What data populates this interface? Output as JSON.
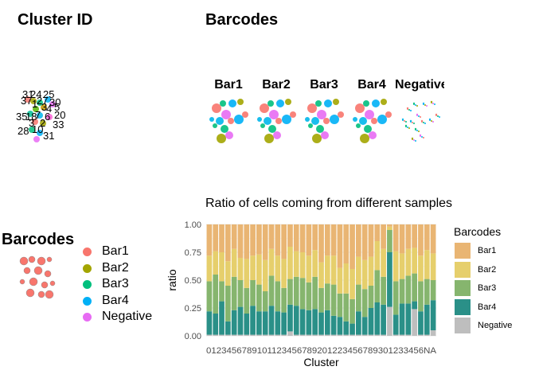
{
  "panels": {
    "cluster_title": "Cluster ID",
    "barcodes_title": "Barcodes",
    "barcodes_small_title": "Barcodes",
    "facet_labels": [
      "Bar1",
      "Bar2",
      "Bar3",
      "Bar4",
      "Negative"
    ],
    "cluster_numbers": [
      "31",
      "24",
      "25",
      "37",
      "27",
      "30",
      "5",
      "1",
      "3",
      "4",
      "35",
      "18",
      "7",
      "6",
      "20",
      "3",
      "2",
      "33",
      "28",
      "10",
      "31"
    ],
    "small_legend": {
      "items": [
        {
          "label": "Bar1",
          "color": "#F8766D"
        },
        {
          "label": "Bar2",
          "color": "#A3A500"
        },
        {
          "label": "Bar3",
          "color": "#00BF7D"
        },
        {
          "label": "Bar4",
          "color": "#00B0F6"
        },
        {
          "label": "Negative",
          "color": "#E76BF3"
        }
      ]
    }
  },
  "chart_data": {
    "type": "bar",
    "stacked": true,
    "title": "Ratio of cells coming from different samples",
    "xlabel": "Cluster",
    "ylabel": "ratio",
    "ylim": [
      0,
      1
    ],
    "yticks": [
      "0.00",
      "0.25",
      "0.50",
      "0.75",
      "1.00"
    ],
    "x_tick_text": "0123456789101123456789201223456789301233456NA",
    "legend_title": "Barcodes",
    "legend_position": "right",
    "categories": [
      "0",
      "1",
      "2",
      "3",
      "4",
      "5",
      "6",
      "7",
      "8",
      "9",
      "10",
      "11",
      "12",
      "13",
      "14",
      "15",
      "16",
      "17",
      "18",
      "19",
      "20",
      "21",
      "22",
      "23",
      "24",
      "25",
      "26",
      "27",
      "28",
      "29",
      "30",
      "31",
      "32",
      "33",
      "34",
      "35",
      "NA"
    ],
    "series": [
      {
        "name": "Negative",
        "color": "#BEBEBE",
        "values": [
          0.01,
          0.01,
          0.01,
          0.01,
          0.01,
          0.01,
          0.01,
          0.01,
          0.01,
          0.01,
          0.01,
          0.01,
          0.01,
          0.04,
          0.01,
          0.01,
          0.01,
          0.01,
          0.01,
          0.01,
          0.01,
          0.01,
          0.01,
          0.01,
          0.01,
          0.01,
          0.01,
          0.01,
          0.01,
          0.26,
          0.01,
          0.01,
          0.01,
          0.24,
          0.01,
          0.01,
          0.05
        ]
      },
      {
        "name": "Bar4",
        "color": "#2A9088",
        "values": [
          0.21,
          0.19,
          0.3,
          0.12,
          0.22,
          0.25,
          0.19,
          0.26,
          0.21,
          0.21,
          0.26,
          0.21,
          0.2,
          0.24,
          0.26,
          0.23,
          0.22,
          0.23,
          0.2,
          0.22,
          0.17,
          0.16,
          0.12,
          0.1,
          0.21,
          0.16,
          0.24,
          0.29,
          0.27,
          0.49,
          0.18,
          0.28,
          0.28,
          0.07,
          0.21,
          0.27,
          0.27
        ]
      },
      {
        "name": "Bar3",
        "color": "#86B56E",
        "values": [
          0.27,
          0.35,
          0.18,
          0.32,
          0.3,
          0.24,
          0.23,
          0.23,
          0.24,
          0.18,
          0.27,
          0.27,
          0.22,
          0.23,
          0.26,
          0.28,
          0.25,
          0.29,
          0.22,
          0.24,
          0.28,
          0.21,
          0.25,
          0.22,
          0.24,
          0.25,
          0.2,
          0.29,
          0.25,
          0.2,
          0.3,
          0.22,
          0.25,
          0.25,
          0.27,
          0.23,
          0.18
        ]
      },
      {
        "name": "Bar2",
        "color": "#E6CF6C",
        "values": [
          0.23,
          0.21,
          0.26,
          0.22,
          0.25,
          0.2,
          0.26,
          0.22,
          0.27,
          0.28,
          0.24,
          0.23,
          0.26,
          0.29,
          0.23,
          0.23,
          0.24,
          0.24,
          0.23,
          0.25,
          0.26,
          0.23,
          0.27,
          0.27,
          0.25,
          0.26,
          0.26,
          0.26,
          0.25,
          0.03,
          0.27,
          0.23,
          0.24,
          0.23,
          0.23,
          0.26,
          0.24
        ]
      },
      {
        "name": "Bar1",
        "color": "#E9B573",
        "values": [
          0.28,
          0.24,
          0.25,
          0.33,
          0.22,
          0.3,
          0.31,
          0.28,
          0.27,
          0.32,
          0.22,
          0.28,
          0.31,
          0.2,
          0.24,
          0.25,
          0.28,
          0.23,
          0.34,
          0.28,
          0.28,
          0.39,
          0.35,
          0.4,
          0.29,
          0.32,
          0.29,
          0.15,
          0.22,
          0.02,
          0.24,
          0.26,
          0.22,
          0.21,
          0.28,
          0.23,
          0.26
        ]
      }
    ]
  }
}
